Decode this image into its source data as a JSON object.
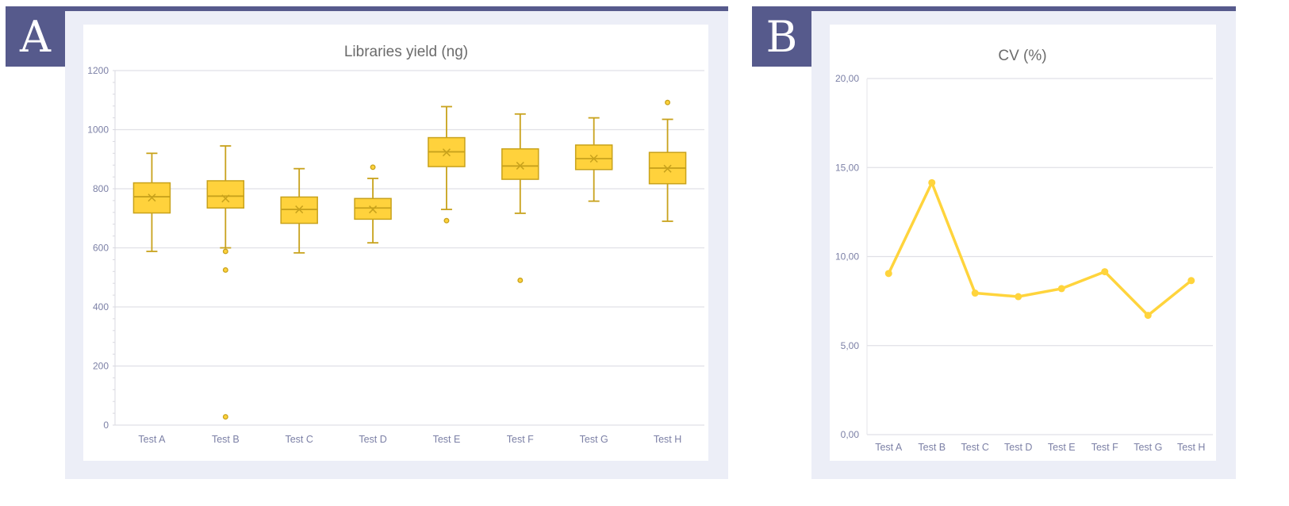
{
  "panels": {
    "a": {
      "label": "A"
    },
    "b": {
      "label": "B"
    }
  },
  "colors": {
    "accent": "#565a8c",
    "panel_bg": "#eceef7",
    "box_fill": "#ffd23c",
    "box_stroke": "#c8a21c",
    "line": "#ffd43c",
    "grid": "#e0e0e6",
    "tick_text": "#7c80a6",
    "title_text": "#6b6b6b"
  },
  "chart_data": [
    {
      "type": "box",
      "title": "Libraries yield (ng)",
      "categories": [
        "Test A",
        "Test B",
        "Test C",
        "Test D",
        "Test E",
        "Test F",
        "Test G",
        "Test H"
      ],
      "ylim": [
        0,
        1200
      ],
      "yticks": [
        "0",
        "200",
        "400",
        "600",
        "800",
        "1000",
        "1200"
      ],
      "grid": true,
      "boxes": [
        {
          "min": 588,
          "q1": 718,
          "median": 773,
          "q3": 820,
          "max": 920,
          "mean": 770,
          "outliers": []
        },
        {
          "min": 600,
          "q1": 735,
          "median": 775,
          "q3": 827,
          "max": 945,
          "mean": 767,
          "outliers": [
            588,
            525,
            28
          ]
        },
        {
          "min": 583,
          "q1": 683,
          "median": 730,
          "q3": 772,
          "max": 868,
          "mean": 730,
          "outliers": []
        },
        {
          "min": 617,
          "q1": 697,
          "median": 735,
          "q3": 767,
          "max": 835,
          "mean": 730,
          "outliers": [
            873
          ]
        },
        {
          "min": 730,
          "q1": 875,
          "median": 925,
          "q3": 973,
          "max": 1078,
          "mean": 923,
          "outliers": [
            692
          ]
        },
        {
          "min": 717,
          "q1": 832,
          "median": 877,
          "q3": 935,
          "max": 1053,
          "mean": 878,
          "outliers": [
            490
          ]
        },
        {
          "min": 758,
          "q1": 865,
          "median": 902,
          "q3": 948,
          "max": 1040,
          "mean": 902,
          "outliers": []
        },
        {
          "min": 690,
          "q1": 817,
          "median": 870,
          "q3": 923,
          "max": 1035,
          "mean": 868,
          "outliers": [
            1092
          ]
        }
      ]
    },
    {
      "type": "line",
      "title": "CV (%)",
      "categories": [
        "Test A",
        "Test B",
        "Test C",
        "Test D",
        "Test E",
        "Test F",
        "Test G",
        "Test H"
      ],
      "values": [
        9.05,
        14.15,
        7.95,
        7.75,
        8.2,
        9.15,
        6.7,
        8.65
      ],
      "ylim": [
        0,
        20
      ],
      "yticks": [
        "0,00",
        "5,00",
        "10,00",
        "15,00",
        "20,00"
      ],
      "grid": true
    }
  ]
}
